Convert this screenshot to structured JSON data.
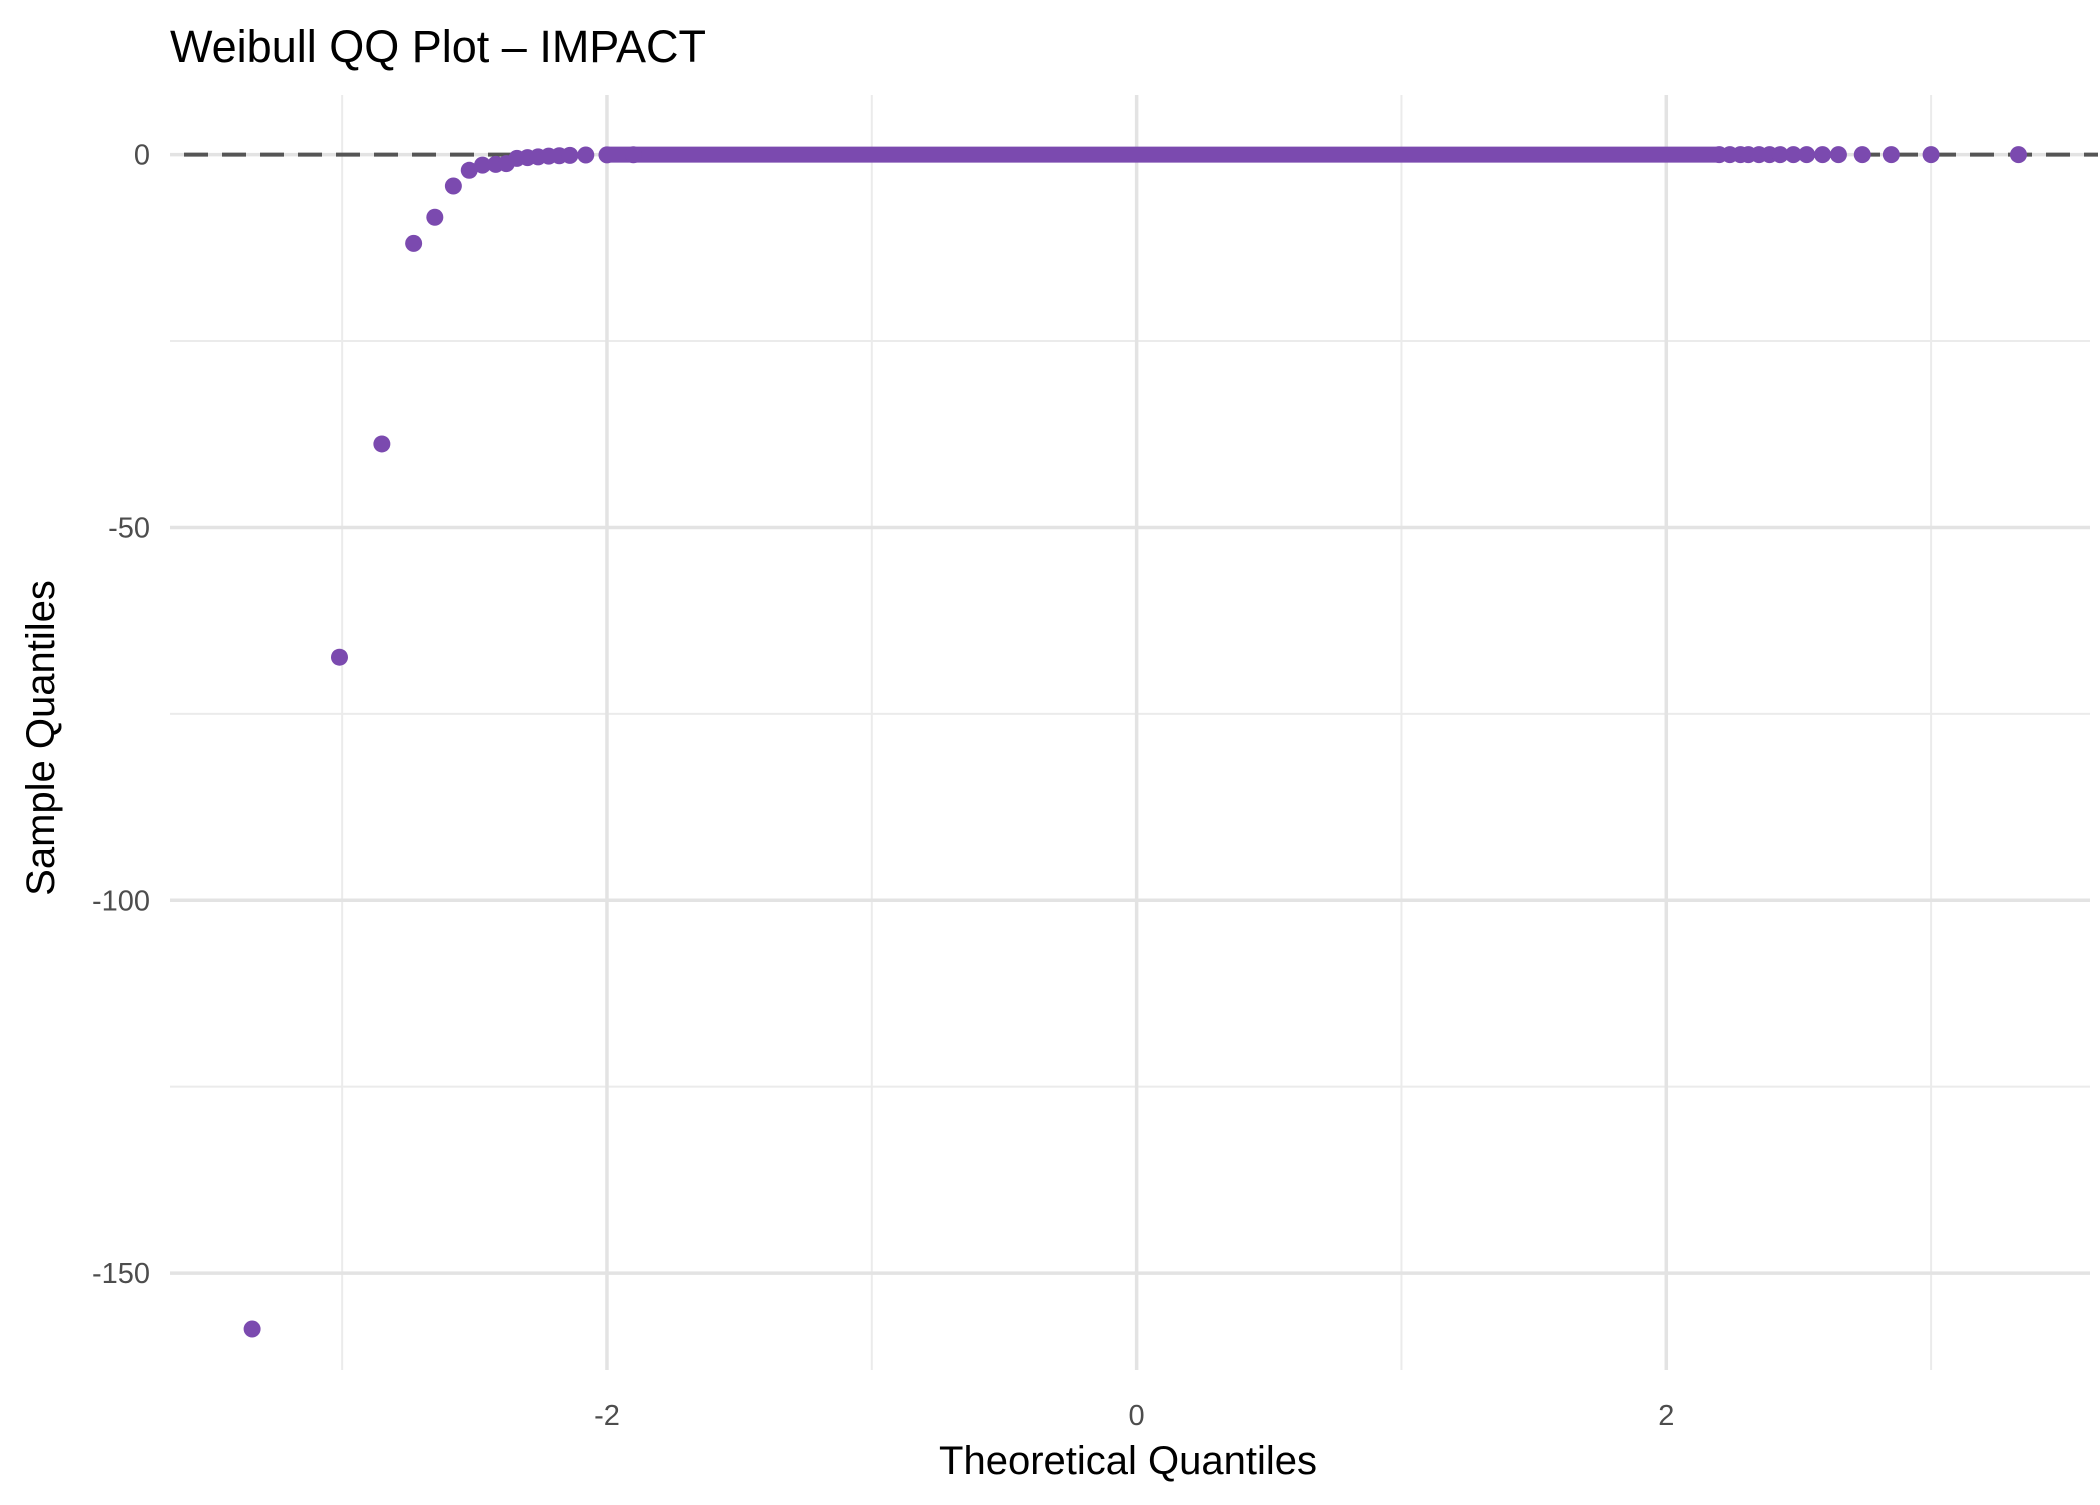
{
  "chart_data": {
    "type": "scatter",
    "title": "Weibull QQ Plot – IMPACT",
    "xlabel": "Theoretical Quantiles",
    "ylabel": "Sample Quantiles",
    "xlim": [
      -3.65,
      3.6
    ],
    "ylim": [
      -163,
      8
    ],
    "x_ticks": [
      -2,
      0,
      2
    ],
    "x_tick_labels": [
      "-2",
      "0",
      "2"
    ],
    "y_ticks": [
      -150,
      -100,
      -50,
      0
    ],
    "y_tick_labels": [
      "-150",
      "-100",
      "-50",
      "0"
    ],
    "x_minor_gridlines": [
      -3,
      -1,
      1,
      3
    ],
    "y_minor_gridlines": [
      -125,
      -75,
      -25
    ],
    "grid": true,
    "reference_line": {
      "type": "horizontal",
      "y": 0,
      "style": "dashed",
      "color": "#555555"
    },
    "point_color": "#7b4aaf",
    "series": [
      {
        "points": [
          {
            "x": -3.34,
            "y": -157.5
          },
          {
            "x": -3.01,
            "y": -67.4
          },
          {
            "x": -2.85,
            "y": -38.8
          },
          {
            "x": -2.73,
            "y": -11.9
          },
          {
            "x": -2.65,
            "y": -8.4
          },
          {
            "x": -2.58,
            "y": -4.2
          },
          {
            "x": -2.52,
            "y": -2.1
          },
          {
            "x": -2.47,
            "y": -1.4
          },
          {
            "x": -2.42,
            "y": -1.3
          },
          {
            "x": -2.38,
            "y": -1.2
          },
          {
            "x": -2.34,
            "y": -0.5
          },
          {
            "x": -2.3,
            "y": -0.4
          },
          {
            "x": -2.26,
            "y": -0.3
          },
          {
            "x": -2.22,
            "y": -0.2
          },
          {
            "x": -2.18,
            "y": -0.15
          },
          {
            "x": -2.14,
            "y": -0.1
          },
          {
            "x": -2.08,
            "y": -0.05
          },
          {
            "x": -2.0,
            "y": -0.03
          },
          {
            "x": -1.9,
            "y": -0.02
          },
          {
            "x": 2.2,
            "y": 0.0
          },
          {
            "x": 2.24,
            "y": 0.0
          },
          {
            "x": 2.28,
            "y": 0.0
          },
          {
            "x": 2.31,
            "y": 0.0
          },
          {
            "x": 2.35,
            "y": 0.0
          },
          {
            "x": 2.39,
            "y": 0.0
          },
          {
            "x": 2.43,
            "y": 0.0
          },
          {
            "x": 2.48,
            "y": 0.0
          },
          {
            "x": 2.53,
            "y": 0.0
          },
          {
            "x": 2.59,
            "y": 0.0
          },
          {
            "x": 2.65,
            "y": 0.0
          },
          {
            "x": 2.74,
            "y": 0.0
          },
          {
            "x": 2.85,
            "y": 0.0
          },
          {
            "x": 3.0,
            "y": 0.0
          },
          {
            "x": 3.33,
            "y": 0.0
          }
        ],
        "dense_band": {
          "x_from": -2.0,
          "x_to": 2.2,
          "y": 0.0
        }
      }
    ]
  }
}
